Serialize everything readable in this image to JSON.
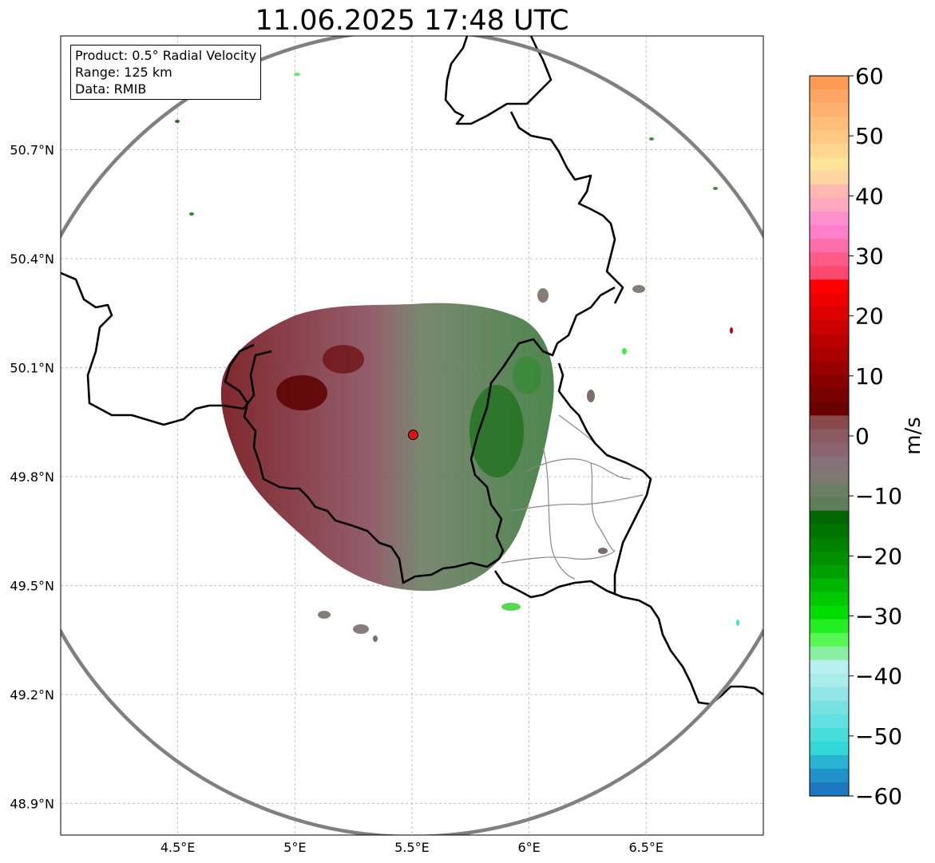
{
  "title": "11.06.2025 17:48 UTC",
  "info_box": {
    "product": "Product: 0.5° Radial Velocity",
    "range": "Range: 125 km",
    "data": "Data: RMIB"
  },
  "map": {
    "lon_range": [
      4.0,
      7.0
    ],
    "lat_range": [
      48.8,
      51.0
    ],
    "lat_ticks": [
      {
        "value": 50.7,
        "label": "50.7°N"
      },
      {
        "value": 50.4,
        "label": "50.4°N"
      },
      {
        "value": 50.1,
        "label": "50.1°N"
      },
      {
        "value": 49.8,
        "label": "49.8°N"
      },
      {
        "value": 49.5,
        "label": "49.5°N"
      },
      {
        "value": 49.2,
        "label": "49.2°N"
      },
      {
        "value": 48.9,
        "label": "48.9°N"
      }
    ],
    "lon_ticks": [
      {
        "value": 4.5,
        "label": "4.5°E"
      },
      {
        "value": 5.0,
        "label": "5°E"
      },
      {
        "value": 5.5,
        "label": "5.5°E"
      },
      {
        "value": 6.0,
        "label": "6°E"
      },
      {
        "value": 6.5,
        "label": "6.5°E"
      }
    ],
    "grid": true,
    "radar_site": {
      "lon": 5.505,
      "lat": 49.915,
      "color": "#d81818"
    },
    "range_ring_km": 125,
    "range_ring_color": "#808080",
    "border_color": "#000000",
    "admin_border_color": "#888888"
  },
  "colorbar": {
    "label": "m/s",
    "vmin": -60,
    "vmax": 60,
    "tick_labels": [
      "60",
      "50",
      "40",
      "30",
      "20",
      "10",
      "0",
      "−10",
      "−20",
      "−30",
      "−40",
      "−50",
      "−60"
    ],
    "tick_values": [
      60,
      50,
      40,
      30,
      20,
      10,
      0,
      -10,
      -20,
      -30,
      -40,
      -50,
      -60
    ],
    "colors_top_to_bottom": [
      "#ff9a55",
      "#ffa566",
      "#ffb270",
      "#ffbd7a",
      "#ffc985",
      "#ffd690",
      "#ffe399",
      "#ffd6a2",
      "#ffb8b0",
      "#ffa8c0",
      "#ff8fcf",
      "#ff80c8",
      "#ff6eaa",
      "#ff5a88",
      "#ff4870",
      "#ff0000",
      "#ee0000",
      "#dd0000",
      "#cc0000",
      "#bb0000",
      "#aa0000",
      "#990000",
      "#880000",
      "#770000",
      "#6a0000",
      "#874a4a",
      "#8a5a60",
      "#8a6470",
      "#86707a",
      "#807872",
      "#6c7e64",
      "#5e7e5a",
      "#006600",
      "#007400",
      "#008200",
      "#009000",
      "#00a000",
      "#00b400",
      "#00c800",
      "#00dd00",
      "#22ee22",
      "#55f855",
      "#88f0a0",
      "#b8f0f0",
      "#a8ecec",
      "#90e6e6",
      "#78e2e2",
      "#60e0e0",
      "#48dcdc",
      "#30d8d8",
      "#28b4d0",
      "#2090c8",
      "#1e78c0"
    ]
  }
}
